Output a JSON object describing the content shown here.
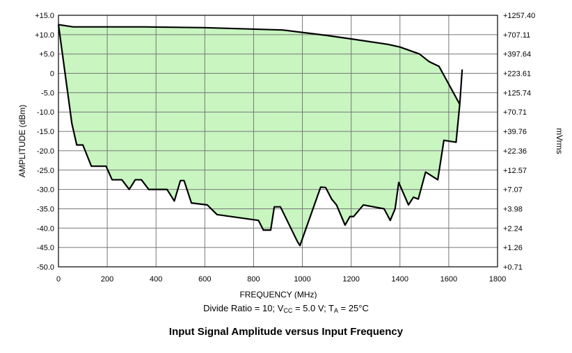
{
  "chart_data": {
    "type": "area",
    "xlabel": "FREQUENCY (MHz)",
    "ylabel": "AMPLITUDE (dBm)",
    "y2label": "mVrms",
    "xlim": [
      0,
      1800
    ],
    "ylim": [
      -50,
      15
    ],
    "grid": true,
    "x_ticks": [
      "0",
      "200",
      "400",
      "600",
      "800",
      "1000",
      "1200",
      "1400",
      "1600",
      "1800"
    ],
    "x_tick_values": [
      0,
      200,
      400,
      600,
      800,
      1000,
      1200,
      1400,
      1600,
      1800
    ],
    "y_ticks": [
      "+15.0",
      "+10.0",
      "+5.0",
      "0",
      "-5.0",
      "-10.0",
      "-15.0",
      "-20.0",
      "-25.0",
      "-30.0",
      "-35.0",
      "-40.0",
      "-45.0",
      "-50.0"
    ],
    "y_tick_values": [
      15,
      10,
      5,
      0,
      -5,
      -10,
      -15,
      -20,
      -25,
      -30,
      -35,
      -40,
      -45,
      -50
    ],
    "y2_ticks": [
      "+1257.40",
      "+707.11",
      "+397.64",
      "+223.61",
      "+125.74",
      "+70.71",
      "+39.76",
      "+22.36",
      "+12.57",
      "+7.07",
      "+3.98",
      "+2.24",
      "+1.26",
      "+0.71"
    ],
    "fill_color": "#c8f5c0",
    "line_color": "#000000",
    "upper": {
      "x": [
        0,
        60,
        200,
        350,
        600,
        920,
        1100,
        1200,
        1350,
        1400,
        1480,
        1520,
        1560,
        1645,
        1655
      ],
      "y": [
        12.6,
        12.0,
        12.0,
        12.0,
        11.8,
        11.2,
        9.8,
        8.9,
        7.5,
        6.8,
        5.0,
        3.0,
        1.8,
        -8.0,
        1.0
      ]
    },
    "lower": {
      "x": [
        0,
        55,
        75,
        100,
        135,
        195,
        220,
        260,
        290,
        315,
        340,
        370,
        445,
        475,
        500,
        515,
        545,
        610,
        650,
        820,
        840,
        870,
        885,
        910,
        980,
        990,
        1075,
        1095,
        1120,
        1140,
        1175,
        1195,
        1210,
        1250,
        1335,
        1360,
        1380,
        1395,
        1435,
        1455,
        1475,
        1505,
        1555,
        1580,
        1630,
        1645
      ],
      "y": [
        12.6,
        -13.0,
        -18.5,
        -18.5,
        -24.0,
        -24.0,
        -27.5,
        -27.5,
        -30.0,
        -27.5,
        -27.5,
        -30.0,
        -30.0,
        -33.0,
        -27.7,
        -27.7,
        -33.5,
        -34.0,
        -36.5,
        -38.0,
        -40.5,
        -40.5,
        -34.5,
        -34.5,
        -43.5,
        -44.5,
        -29.4,
        -29.5,
        -32.5,
        -34.0,
        -39.2,
        -37.0,
        -37.0,
        -34.0,
        -35.0,
        -38.0,
        -35.0,
        -28.2,
        -34.0,
        -32.0,
        -32.5,
        -25.5,
        -27.5,
        -17.3,
        -17.8,
        -8.0
      ]
    }
  },
  "footer": {
    "conditions_prefix": "Divide Ratio = 10; V",
    "vcc_sub": "CC",
    "conditions_mid": " = 5.0 V; T",
    "ta_sub": "A",
    "conditions_suffix": " = 25°C",
    "caption": "Input Signal Amplitude versus Input Frequency"
  }
}
